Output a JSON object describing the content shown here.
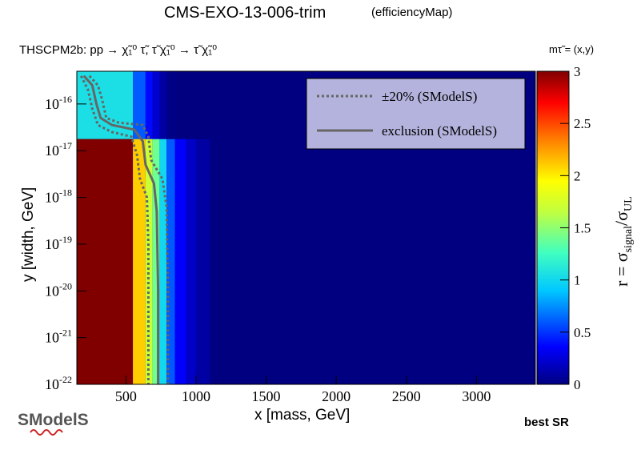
{
  "header": {
    "title": "CMS-EXO-13-006-trim",
    "subtitle": "(efficiencyMap)",
    "process": "THSCPM2b: pp  → χ̃₁⁰ τ̃, τ̃ χ̃₁⁰ → τ̃ χ̃₁⁰",
    "mass_label": "mτ̃ = (x,y)"
  },
  "footer": {
    "best_sr": "best SR",
    "logo_text": "SModelS"
  },
  "chart_data": {
    "type": "heatmap",
    "xlabel": "x [mass, GeV]",
    "ylabel": "y [width, GeV]",
    "x_ticks": [
      "500",
      "1000",
      "1500",
      "2000",
      "2500",
      "3000"
    ],
    "x_tick_values": [
      500,
      1000,
      1500,
      2000,
      2500,
      3000
    ],
    "y_ticks": [
      "10-16",
      "10-17",
      "10-18",
      "10-19",
      "10-20",
      "10-21",
      "10-22"
    ],
    "y_tick_exponents": [
      -16,
      -17,
      -18,
      -19,
      -20,
      -21,
      -22
    ],
    "xlim": [
      150,
      3420
    ],
    "ylim_log10": [
      -22,
      -15.3
    ],
    "y_scale": "log",
    "colorbar": {
      "label": "r = σsignal/σUL",
      "min": 0,
      "max": 3,
      "ticks": [
        "0",
        "0.5",
        "1",
        "1.5",
        "2",
        "2.5",
        "3"
      ],
      "palette": "rainbow"
    },
    "legend": {
      "placement": "top-right",
      "entries": [
        {
          "label": "±20% (SModelS)",
          "style": "dotted",
          "color": "#666666"
        },
        {
          "label": "exclusion (SModelS)",
          "style": "solid",
          "color": "#666666"
        }
      ]
    },
    "background_r": 0.03,
    "r_by_mass_bins": [
      {
        "x_from": 150,
        "x_to": 550,
        "r": 3.0
      },
      {
        "x_from": 550,
        "x_to": 640,
        "r": 2.1
      },
      {
        "x_from": 640,
        "x_to": 690,
        "r": 1.7
      },
      {
        "x_from": 690,
        "x_to": 740,
        "r": 1.4
      },
      {
        "x_from": 740,
        "x_to": 790,
        "r": 1.0
      },
      {
        "x_from": 790,
        "x_to": 850,
        "r": 0.6
      },
      {
        "x_from": 850,
        "x_to": 930,
        "r": 0.35
      },
      {
        "x_from": 930,
        "x_to": 1000,
        "r": 0.2
      },
      {
        "x_from": 1000,
        "x_to": 1100,
        "r": 0.1
      }
    ],
    "exclusion_contour": [
      {
        "x": 200,
        "y_exp": -15.4
      },
      {
        "x": 260,
        "y_exp": -15.6
      },
      {
        "x": 290,
        "y_exp": -16.0
      },
      {
        "x": 320,
        "y_exp": -16.3
      },
      {
        "x": 400,
        "y_exp": -16.45
      },
      {
        "x": 560,
        "y_exp": -16.55
      },
      {
        "x": 620,
        "y_exp": -16.8
      },
      {
        "x": 640,
        "y_exp": -17.3
      },
      {
        "x": 700,
        "y_exp": -17.7
      },
      {
        "x": 720,
        "y_exp": -18.3
      },
      {
        "x": 730,
        "y_exp": -20.0
      },
      {
        "x": 730,
        "y_exp": -22.0
      }
    ],
    "contour_minus20": [
      {
        "x": 180,
        "y_exp": -15.4
      },
      {
        "x": 230,
        "y_exp": -15.7
      },
      {
        "x": 260,
        "y_exp": -16.1
      },
      {
        "x": 300,
        "y_exp": -16.45
      },
      {
        "x": 400,
        "y_exp": -16.6
      },
      {
        "x": 540,
        "y_exp": -16.7
      },
      {
        "x": 580,
        "y_exp": -17.1
      },
      {
        "x": 600,
        "y_exp": -17.6
      },
      {
        "x": 650,
        "y_exp": -18.0
      },
      {
        "x": 660,
        "y_exp": -19.0
      },
      {
        "x": 660,
        "y_exp": -22.0
      }
    ],
    "contour_plus20": [
      {
        "x": 240,
        "y_exp": -15.4
      },
      {
        "x": 300,
        "y_exp": -15.6
      },
      {
        "x": 330,
        "y_exp": -15.9
      },
      {
        "x": 360,
        "y_exp": -16.3
      },
      {
        "x": 450,
        "y_exp": -16.4
      },
      {
        "x": 620,
        "y_exp": -16.45
      },
      {
        "x": 660,
        "y_exp": -16.7
      },
      {
        "x": 680,
        "y_exp": -17.2
      },
      {
        "x": 760,
        "y_exp": -17.6
      },
      {
        "x": 790,
        "y_exp": -18.2
      },
      {
        "x": 800,
        "y_exp": -20.0
      },
      {
        "x": 800,
        "y_exp": -22.0
      }
    ]
  }
}
